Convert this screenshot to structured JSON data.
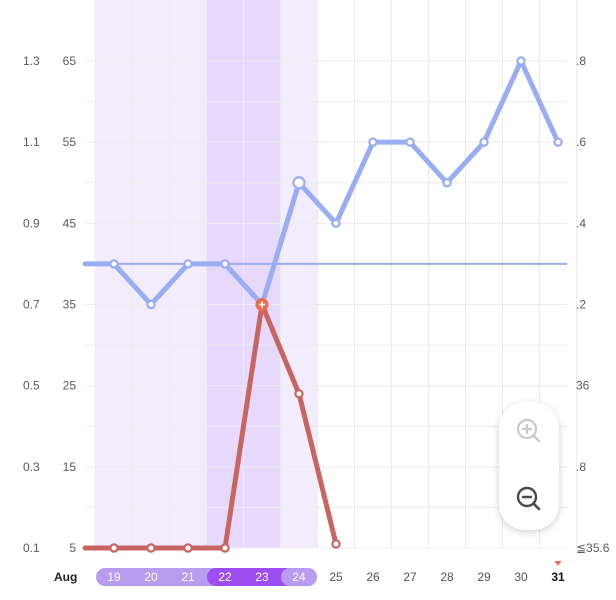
{
  "chart_data": {
    "type": "line",
    "month_label": "Aug",
    "x": [
      "19",
      "20",
      "21",
      "22",
      "23",
      "24",
      "25",
      "26",
      "27",
      "28",
      "29",
      "30",
      "31"
    ],
    "left_axis_1": [
      1.3,
      1.1,
      0.9,
      0.7,
      0.5,
      0.3,
      0.1
    ],
    "left_axis_2": [
      65,
      55,
      45,
      35,
      25,
      15,
      5
    ],
    "right_axis": [
      ".8",
      ".6",
      ".4",
      ".2",
      "36",
      ".8",
      "≦35.6"
    ],
    "ylim": [
      5,
      65
    ],
    "reference_line": 40,
    "series": [
      {
        "color": "#98adf3",
        "values": [
          [
            18,
            40
          ],
          [
            19,
            40
          ],
          [
            20,
            35
          ],
          [
            21,
            40
          ],
          [
            22,
            40
          ],
          [
            23,
            35
          ],
          [
            24,
            50
          ],
          [
            25,
            45
          ],
          [
            26,
            55
          ],
          [
            27,
            55
          ],
          [
            28,
            50
          ],
          [
            29,
            55
          ],
          [
            30,
            65
          ],
          [
            31,
            55
          ]
        ]
      },
      {
        "color": "#c96560",
        "values": [
          [
            18,
            5
          ],
          [
            19,
            5
          ],
          [
            20,
            5
          ],
          [
            21,
            5
          ],
          [
            22,
            5
          ],
          [
            23,
            35
          ],
          [
            24,
            24
          ],
          [
            25,
            5.5
          ]
        ]
      }
    ],
    "shaded_light": [
      "19",
      "24"
    ],
    "shaded_dark": [
      "22",
      "23"
    ],
    "today": "31",
    "grid": true
  },
  "colors": {
    "light_band": "#f2ecfd",
    "dark_band": "#e6d9fb",
    "pill_light": "#b89cf0",
    "pill_dark": "#9d4ef0"
  },
  "zoom": {
    "in_icon": "zoom-in-icon",
    "out_icon": "zoom-out-icon"
  }
}
